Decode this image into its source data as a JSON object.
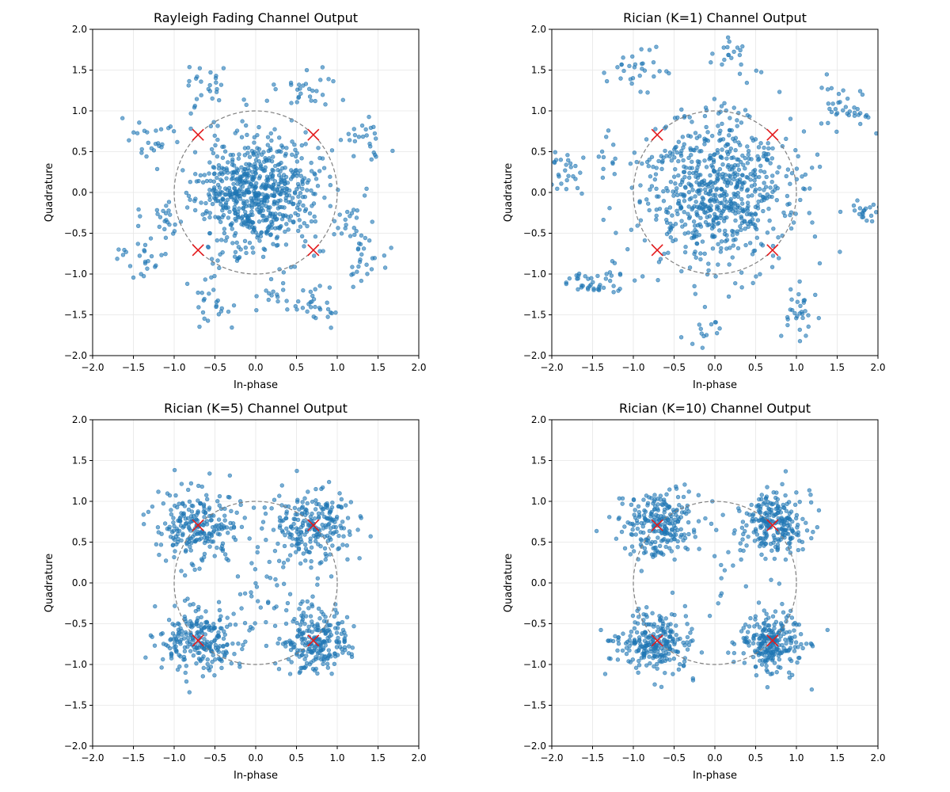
{
  "figure": {
    "shared": {
      "xlabel": "In-phase",
      "ylabel": "Quadrature",
      "xlim": [
        -2.0,
        2.0
      ],
      "ylim": [
        -2.0,
        2.0
      ],
      "ticks": [
        -2.0,
        -1.5,
        -1.0,
        -0.5,
        0.0,
        0.5,
        1.0,
        1.5,
        2.0
      ],
      "tick_labels": [
        "−2.0",
        "−1.5",
        "−1.0",
        "−0.5",
        "0.0",
        "0.5",
        "1.0",
        "1.5",
        "2.0"
      ]
    },
    "colors": {
      "points": "#1f77b4",
      "markers": "#e41a1c",
      "circle": "#808080",
      "grid": "#e6e6e6"
    }
  },
  "chart_data": [
    {
      "type": "scatter",
      "title": "Rayleigh Fading Channel Output",
      "xlabel": "In-phase",
      "ylabel": "Quadrature",
      "xlim": [
        -2.0,
        2.0
      ],
      "ylim": [
        -2.0,
        2.0
      ],
      "grid": true,
      "reference_circle_radius": 1.0,
      "ideal_constellation": [
        [
          0.707,
          0.707
        ],
        [
          -0.707,
          0.707
        ],
        [
          -0.707,
          -0.707
        ],
        [
          0.707,
          -0.707
        ]
      ],
      "scatter_spec": {
        "seed": 11,
        "distribution": "mixture",
        "components": [
          {
            "n": 680,
            "cx": 0.0,
            "cy": 0.0,
            "sx": 0.36,
            "sy": 0.36
          },
          {
            "n": 26,
            "cx": -0.6,
            "cy": 1.3,
            "sx": 0.16,
            "sy": 0.14
          },
          {
            "n": 26,
            "cx": 0.65,
            "cy": 1.3,
            "sx": 0.16,
            "sy": 0.14
          },
          {
            "n": 24,
            "cx": -1.2,
            "cy": 0.65,
            "sx": 0.18,
            "sy": 0.15
          },
          {
            "n": 24,
            "cx": 1.3,
            "cy": 0.7,
            "sx": 0.18,
            "sy": 0.15
          },
          {
            "n": 24,
            "cx": -1.2,
            "cy": -0.3,
            "sx": 0.16,
            "sy": 0.14
          },
          {
            "n": 24,
            "cx": 1.2,
            "cy": -0.4,
            "sx": 0.16,
            "sy": 0.15
          },
          {
            "n": 24,
            "cx": -1.4,
            "cy": -0.8,
            "sx": 0.17,
            "sy": 0.12
          },
          {
            "n": 24,
            "cx": -0.6,
            "cy": -1.35,
            "sx": 0.18,
            "sy": 0.13
          },
          {
            "n": 24,
            "cx": 0.7,
            "cy": -1.4,
            "sx": 0.14,
            "sy": 0.12
          },
          {
            "n": 22,
            "cx": 1.3,
            "cy": -0.85,
            "sx": 0.15,
            "sy": 0.12
          },
          {
            "n": 20,
            "cx": 0.3,
            "cy": -1.2,
            "sx": 0.22,
            "sy": 0.1
          }
        ]
      }
    },
    {
      "type": "scatter",
      "title": "Rician (K=1) Channel Output",
      "xlabel": "In-phase",
      "ylabel": "Quadrature",
      "xlim": [
        -2.0,
        2.0
      ],
      "ylim": [
        -2.0,
        2.0
      ],
      "grid": true,
      "reference_circle_radius": 1.0,
      "ideal_constellation": [
        [
          0.707,
          0.707
        ],
        [
          -0.707,
          0.707
        ],
        [
          -0.707,
          -0.707
        ],
        [
          0.707,
          -0.707
        ]
      ],
      "scatter_spec": {
        "seed": 23,
        "distribution": "mixture",
        "components": [
          {
            "n": 700,
            "cx": 0.0,
            "cy": 0.0,
            "sx": 0.45,
            "sy": 0.45
          },
          {
            "n": 40,
            "cx": -1.5,
            "cy": -1.1,
            "sx": 0.18,
            "sy": 0.1
          },
          {
            "n": 30,
            "cx": -1.85,
            "cy": 0.25,
            "sx": 0.15,
            "sy": 0.15
          },
          {
            "n": 40,
            "cx": 1.6,
            "cy": 1.0,
            "sx": 0.18,
            "sy": 0.15
          },
          {
            "n": 20,
            "cx": 1.8,
            "cy": -0.3,
            "sx": 0.1,
            "sy": 0.1
          },
          {
            "n": 30,
            "cx": 1.05,
            "cy": -1.45,
            "sx": 0.12,
            "sy": 0.15
          },
          {
            "n": 30,
            "cx": -0.9,
            "cy": 1.55,
            "sx": 0.2,
            "sy": 0.15
          },
          {
            "n": 20,
            "cx": 0.2,
            "cy": 1.7,
            "sx": 0.15,
            "sy": 0.15
          },
          {
            "n": 15,
            "cx": -0.15,
            "cy": -1.65,
            "sx": 0.12,
            "sy": 0.15
          },
          {
            "n": 12,
            "cx": -1.3,
            "cy": 0.55,
            "sx": 0.1,
            "sy": 0.15
          }
        ]
      }
    },
    {
      "type": "scatter",
      "title": "Rician (K=5) Channel Output",
      "xlabel": "In-phase",
      "ylabel": "Quadrature",
      "xlim": [
        -2.0,
        2.0
      ],
      "ylim": [
        -2.0,
        2.0
      ],
      "grid": true,
      "reference_circle_radius": 1.0,
      "ideal_constellation": [
        [
          0.707,
          0.707
        ],
        [
          -0.707,
          0.707
        ],
        [
          -0.707,
          -0.707
        ],
        [
          0.707,
          -0.707
        ]
      ],
      "scatter_spec": {
        "seed": 37,
        "distribution": "mixture",
        "components": [
          {
            "n": 230,
            "cx": -0.7,
            "cy": 0.7,
            "sx": 0.25,
            "sy": 0.22
          },
          {
            "n": 230,
            "cx": 0.7,
            "cy": 0.7,
            "sx": 0.25,
            "sy": 0.22
          },
          {
            "n": 230,
            "cx": -0.7,
            "cy": -0.7,
            "sx": 0.25,
            "sy": 0.2
          },
          {
            "n": 230,
            "cx": 0.7,
            "cy": -0.7,
            "sx": 0.22,
            "sy": 0.2
          },
          {
            "n": 40,
            "cx": 0.0,
            "cy": 0.0,
            "sx": 0.3,
            "sy": 0.35
          }
        ]
      }
    },
    {
      "type": "scatter",
      "title": "Rician (K=10) Channel Output",
      "xlabel": "In-phase",
      "ylabel": "Quadrature",
      "xlim": [
        -2.0,
        2.0
      ],
      "ylim": [
        -2.0,
        2.0
      ],
      "grid": true,
      "reference_circle_radius": 1.0,
      "ideal_constellation": [
        [
          0.707,
          0.707
        ],
        [
          -0.707,
          0.707
        ],
        [
          -0.707,
          -0.707
        ],
        [
          0.707,
          -0.707
        ]
      ],
      "scatter_spec": {
        "seed": 53,
        "distribution": "mixture",
        "components": [
          {
            "n": 240,
            "cx": -0.7,
            "cy": 0.72,
            "sx": 0.22,
            "sy": 0.2
          },
          {
            "n": 240,
            "cx": 0.72,
            "cy": 0.72,
            "sx": 0.2,
            "sy": 0.2
          },
          {
            "n": 240,
            "cx": -0.72,
            "cy": -0.72,
            "sx": 0.22,
            "sy": 0.18
          },
          {
            "n": 240,
            "cx": 0.7,
            "cy": -0.75,
            "sx": 0.2,
            "sy": 0.18
          },
          {
            "n": 15,
            "cx": 0.0,
            "cy": 0.0,
            "sx": 0.35,
            "sy": 0.35
          }
        ]
      }
    }
  ]
}
